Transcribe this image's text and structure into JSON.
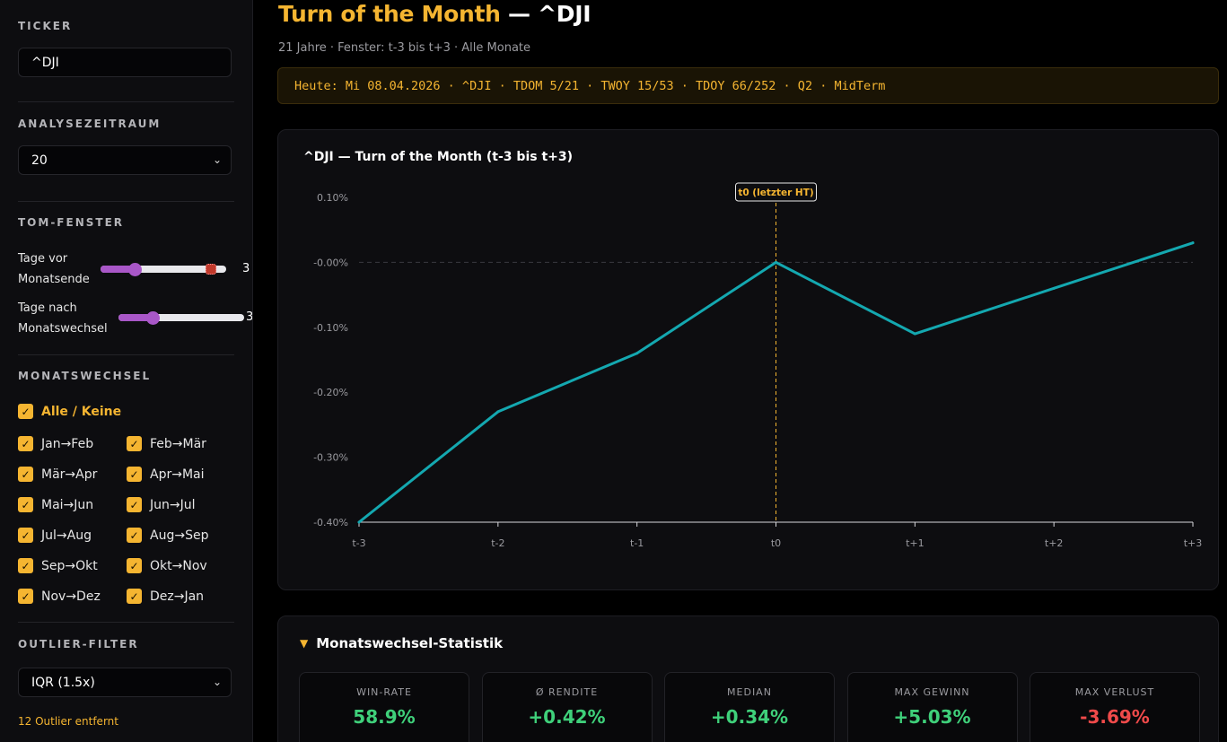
{
  "sidebar": {
    "ticker_title": "TICKER",
    "ticker_value": "^DJI",
    "period_title": "ANALYSEZEITRAUM",
    "period_value": "20",
    "tom_title": "TOM-FENSTER",
    "before_label_1": "Tage vor",
    "before_label_2": "Monatsende",
    "before_value": "3",
    "before_fraction": 0.25,
    "after_label_1": "Tage nach",
    "after_label_2": "Monatswechsel",
    "after_value": "3",
    "after_fraction": 0.25,
    "months_title": "MONATSWECHSEL",
    "all_label": "Alle / Keine",
    "months": [
      "Jan→Feb",
      "Feb→Mär",
      "Mär→Apr",
      "Apr→Mai",
      "Mai→Jun",
      "Jun→Jul",
      "Jul→Aug",
      "Aug→Sep",
      "Sep→Okt",
      "Okt→Nov",
      "Nov→Dez",
      "Dez→Jan"
    ],
    "outlier_title": "OUTLIER-FILTER",
    "outlier_value": "IQR (1.5x)",
    "outlier_note": "12 Outlier entfernt"
  },
  "header": {
    "title_accent": "Turn of the Month",
    "title_rest": " — ^DJI",
    "subtitle": "21 Jahre · Fenster: t-3 bis t+3 · Alle Monate",
    "info": "Heute: Mi 08.04.2026 · ^DJI · TDOM 5/21 · TWOY 15/53 · TDOY 66/252 · Q2 · MidTerm"
  },
  "chart_data": {
    "type": "line",
    "title": "^DJI — Turn of the Month (t-3 bis t+3)",
    "x": [
      "t-3",
      "t-2",
      "t-1",
      "t0",
      "t+1",
      "t+2",
      "t+3"
    ],
    "series": [
      {
        "values": [
          -0.4,
          -0.23,
          -0.14,
          0.0,
          -0.11,
          -0.04,
          0.03
        ]
      }
    ],
    "yticks": [
      "0.10%",
      "-0.00%",
      "-0.10%",
      "-0.20%",
      "-0.30%",
      "-0.40%"
    ],
    "ylim": [
      -0.4,
      0.1
    ],
    "annotation": "t0 (letzter HT)",
    "line_color": "#14a8b0",
    "grid": false
  },
  "stats": {
    "title": "Monatswechsel-Statistik",
    "kpis": [
      {
        "label": "WIN-RATE",
        "value": "58.9%",
        "tone": "pos"
      },
      {
        "label": "Ø RENDITE",
        "value": "+0.42%",
        "tone": "pos"
      },
      {
        "label": "MEDIAN",
        "value": "+0.34%",
        "tone": "pos"
      },
      {
        "label": "MAX GEWINN",
        "value": "+5.03%",
        "tone": "pos"
      },
      {
        "label": "MAX VERLUST",
        "value": "-3.69%",
        "tone": "neg"
      }
    ]
  },
  "colors": {
    "accent": "#f5b531",
    "positive": "#3fd07a",
    "negative": "#f04a4a",
    "slider": "#a957c8"
  }
}
